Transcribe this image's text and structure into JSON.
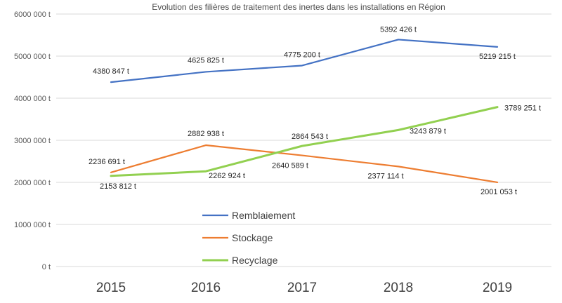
{
  "chart_data": {
    "type": "line",
    "title": "Evolution des filières de traitement des inertes dans les installations en Région",
    "categories": [
      "2015",
      "2016",
      "2017",
      "2018",
      "2019"
    ],
    "ylim": [
      0,
      6000000
    ],
    "yticks": [
      0,
      1000000,
      2000000,
      3000000,
      4000000,
      5000000,
      6000000
    ],
    "ytick_labels": [
      "0 t",
      "1000 000 t",
      "2000 000 t",
      "3000 000 t",
      "4000 000 t",
      "5000 000 t",
      "6000 000 t"
    ],
    "grid": true,
    "legend_position": "bottom-left",
    "series": [
      {
        "name": "Remblaiement",
        "color": "#4472c4",
        "values": [
          4380847,
          4625825,
          4775200,
          5392426,
          5219215
        ],
        "labels": [
          "4380 847 t",
          "4625 825 t",
          "4775 200 t",
          "5392 426 t",
          "5219 215 t"
        ]
      },
      {
        "name": "Stockage",
        "color": "#ed7d31",
        "values": [
          2236691,
          2882938,
          2640589,
          2377114,
          2001053
        ],
        "labels": [
          "2236 691 t",
          "2882 938 t",
          "2640 589 t",
          "2377 114 t",
          "2001 053 t"
        ]
      },
      {
        "name": "Recyclage",
        "color": "#92d050",
        "values": [
          2153812,
          2262924,
          2864543,
          3243879,
          3789251
        ],
        "labels": [
          "2153 812 t",
          "2262 924 t",
          "2864 543 t",
          "3243 879 t",
          "3789 251 t"
        ]
      }
    ]
  }
}
